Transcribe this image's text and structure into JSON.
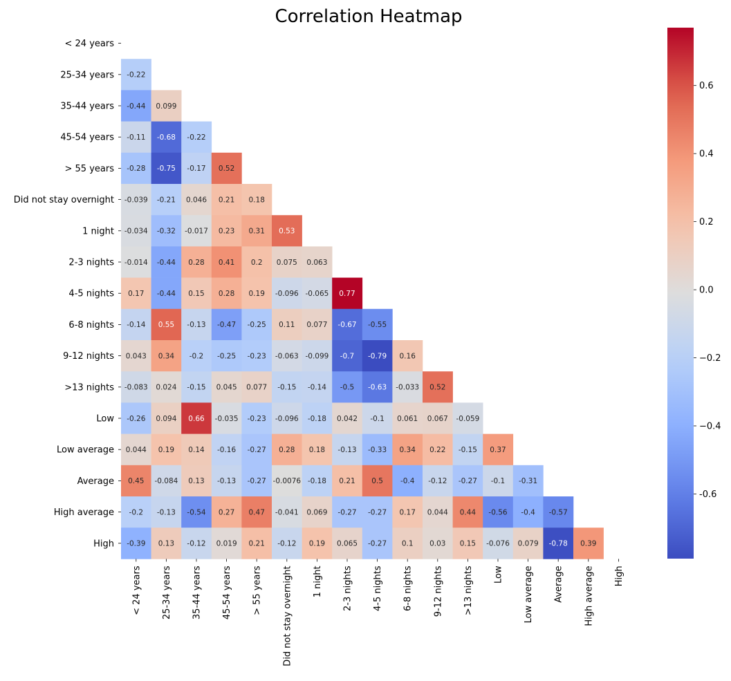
{
  "chart_data": {
    "type": "heatmap",
    "title": "Correlation Heatmap",
    "colormap": "coolwarm",
    "mask": "upper-triangle-including-diagonal",
    "vmin": -0.79,
    "vmax": 0.77,
    "row_labels": [
      "< 24 years",
      "25-34 years",
      "35-44 years",
      "45-54 years",
      "> 55 years",
      "Did not stay overnight",
      "1 night",
      "2-3 nights",
      "4-5 nights",
      "6-8 nights",
      "9-12 nights",
      ">13 nights",
      "Low",
      "Low average",
      "Average",
      "High average",
      "High"
    ],
    "col_labels": [
      "< 24 years",
      "25-34 years",
      "35-44 years",
      "45-54 years",
      "> 55 years",
      "Did not stay overnight",
      "1 night",
      "2-3 nights",
      "4-5 nights",
      "6-8 nights",
      "9-12 nights",
      ">13 nights",
      "Low",
      "Low average",
      "Average",
      "High average",
      "High"
    ],
    "values": [
      [],
      [
        "-0.22"
      ],
      [
        "-0.44",
        "0.099"
      ],
      [
        "-0.11",
        "-0.68",
        "-0.22"
      ],
      [
        "-0.28",
        "-0.75",
        "-0.17",
        "0.52"
      ],
      [
        "-0.039",
        "-0.21",
        "0.046",
        "0.21",
        "0.18"
      ],
      [
        "-0.034",
        "-0.32",
        "-0.017",
        "0.23",
        "0.31",
        "0.53"
      ],
      [
        "-0.014",
        "-0.44",
        "0.28",
        "0.41",
        "0.2",
        "0.075",
        "0.063"
      ],
      [
        "0.17",
        "-0.44",
        "0.15",
        "0.28",
        "0.19",
        "-0.096",
        "-0.065",
        "0.77"
      ],
      [
        "-0.14",
        "0.55",
        "-0.13",
        "-0.47",
        "-0.25",
        "0.11",
        "0.077",
        "-0.67",
        "-0.55"
      ],
      [
        "0.043",
        "0.34",
        "-0.2",
        "-0.25",
        "-0.23",
        "-0.063",
        "-0.099",
        "-0.7",
        "-0.79",
        "0.16"
      ],
      [
        "-0.083",
        "0.024",
        "-0.15",
        "0.045",
        "0.077",
        "-0.15",
        "-0.14",
        "-0.5",
        "-0.63",
        "-0.033",
        "0.52"
      ],
      [
        "-0.26",
        "0.094",
        "0.66",
        "-0.035",
        "-0.23",
        "-0.096",
        "-0.18",
        "0.042",
        "-0.1",
        "0.061",
        "0.067",
        "-0.059"
      ],
      [
        "0.044",
        "0.19",
        "0.14",
        "-0.16",
        "-0.27",
        "0.28",
        "0.18",
        "-0.13",
        "-0.33",
        "0.34",
        "0.22",
        "-0.15",
        "0.37"
      ],
      [
        "0.45",
        "-0.084",
        "0.13",
        "-0.13",
        "-0.27",
        "-0.0076",
        "-0.18",
        "0.21",
        "0.5",
        "-0.4",
        "-0.12",
        "-0.27",
        "-0.1",
        "-0.31"
      ],
      [
        "-0.2",
        "-0.13",
        "-0.54",
        "0.27",
        "0.47",
        "-0.041",
        "0.069",
        "-0.27",
        "-0.27",
        "0.17",
        "0.044",
        "0.44",
        "-0.56",
        "-0.4",
        "-0.57"
      ],
      [
        "-0.39",
        "0.13",
        "-0.12",
        "0.019",
        "0.21",
        "-0.12",
        "0.19",
        "0.065",
        "-0.27",
        "0.1",
        "0.03",
        "0.15",
        "-0.076",
        "0.079",
        "-0.78",
        "0.39"
      ]
    ],
    "colorbar": {
      "ticks": [
        "-0.6",
        "−0.4",
        "−0.2",
        "0.0",
        "0.2",
        "0.4",
        "0.6"
      ],
      "tick_values": [
        -0.6,
        -0.4,
        -0.2,
        0.0,
        0.2,
        0.4,
        0.6
      ]
    },
    "grid": false,
    "legend": "colorbar-right"
  }
}
